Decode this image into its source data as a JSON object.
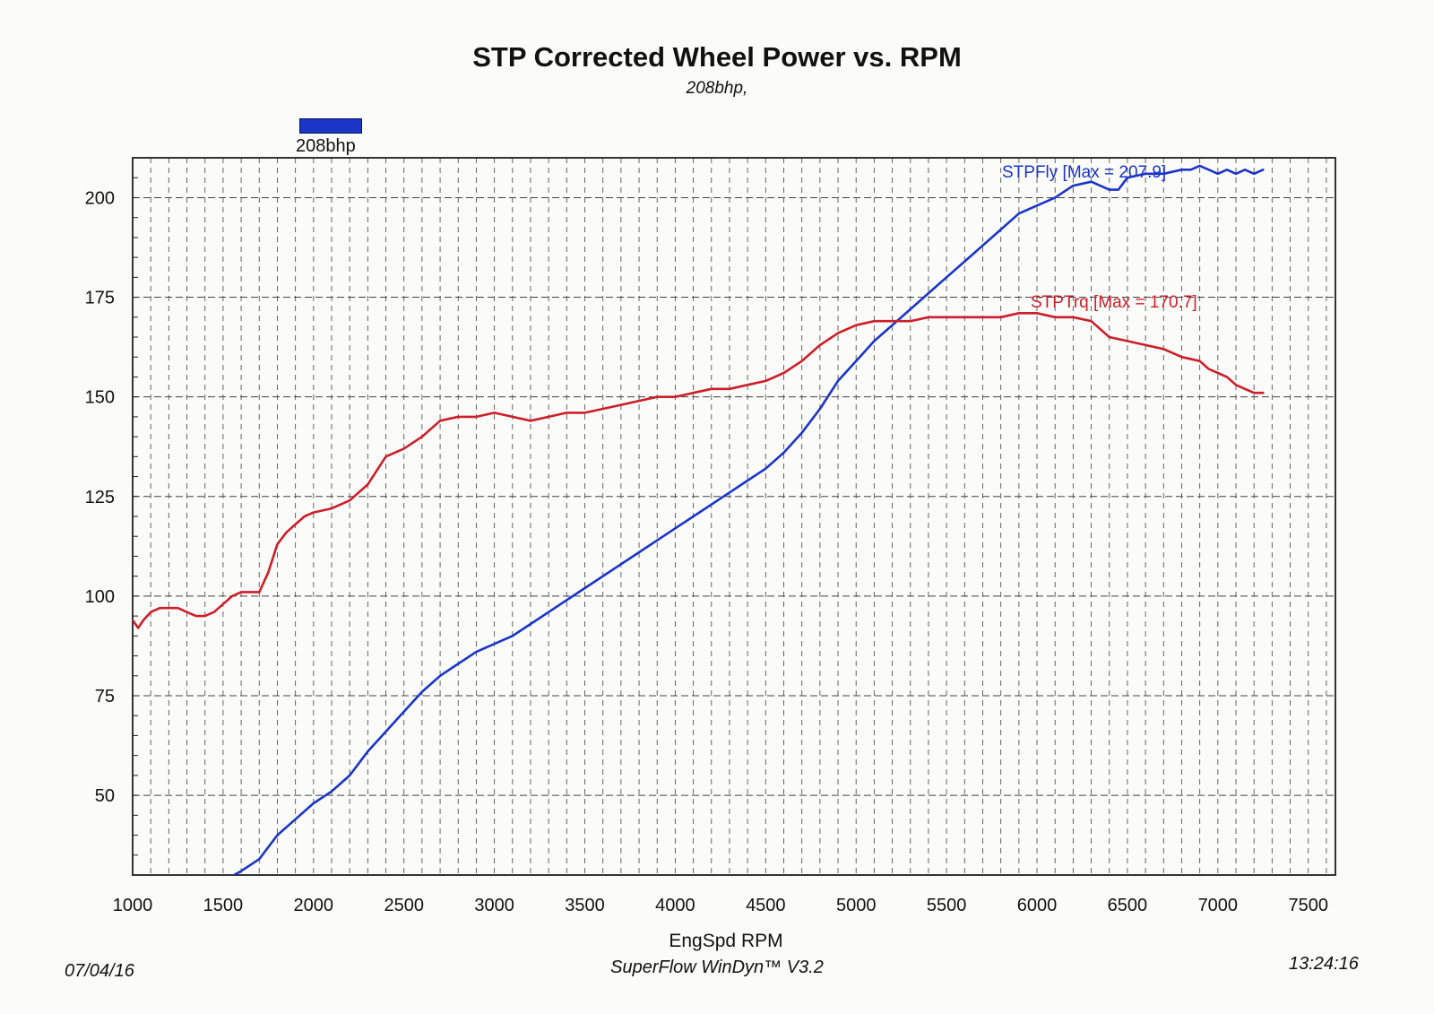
{
  "chart_data": {
    "type": "line",
    "title": "STP Corrected Wheel Power vs. RPM",
    "subtitle": "208bhp,",
    "legend": [
      {
        "label": "208bhp",
        "color": "#1a35c8"
      }
    ],
    "xlabel": "EngSpd RPM",
    "ylabel": "",
    "xlim": [
      1000,
      7650
    ],
    "ylim": [
      30,
      210
    ],
    "xticks": [
      1000,
      1500,
      2000,
      2500,
      3000,
      3500,
      4000,
      4500,
      5000,
      5500,
      6000,
      6500,
      7000,
      7500
    ],
    "yticks": [
      50,
      75,
      100,
      125,
      150,
      175,
      200
    ],
    "grid": true,
    "series": [
      {
        "name": "STPFly",
        "label": "STPFly [Max = 207.9]",
        "color": "#1a35c8",
        "x": [
          1560,
          1600,
          1700,
          1800,
          1900,
          2000,
          2100,
          2200,
          2300,
          2400,
          2500,
          2600,
          2700,
          2800,
          2900,
          3000,
          3100,
          3200,
          3300,
          3400,
          3500,
          3600,
          3700,
          3800,
          3900,
          4000,
          4100,
          4200,
          4300,
          4400,
          4500,
          4600,
          4700,
          4800,
          4900,
          5000,
          5100,
          5200,
          5300,
          5400,
          5500,
          5600,
          5700,
          5800,
          5900,
          6000,
          6100,
          6200,
          6300,
          6400,
          6450,
          6500,
          6600,
          6700,
          6800,
          6850,
          6900,
          6950,
          7000,
          7050,
          7100,
          7150,
          7200,
          7250
        ],
        "y": [
          30,
          31,
          34,
          40,
          44,
          48,
          51,
          55,
          61,
          66,
          71,
          76,
          80,
          83,
          86,
          88,
          90,
          93,
          96,
          99,
          102,
          105,
          108,
          111,
          114,
          117,
          120,
          123,
          126,
          129,
          132,
          136,
          141,
          147,
          154,
          159,
          164,
          168,
          172,
          176,
          180,
          184,
          188,
          192,
          196,
          198,
          200,
          203,
          204,
          202,
          202,
          205,
          206,
          206,
          207,
          207,
          208,
          207,
          206,
          207,
          206,
          207,
          206,
          207
        ]
      },
      {
        "name": "STPTrq",
        "label": "STPTrq [Max = 170.7]",
        "color": "#cc1f2a",
        "x": [
          1000,
          1030,
          1060,
          1100,
          1150,
          1200,
          1250,
          1300,
          1350,
          1400,
          1450,
          1500,
          1550,
          1600,
          1650,
          1700,
          1750,
          1800,
          1850,
          1900,
          1950,
          2000,
          2100,
          2200,
          2300,
          2400,
          2500,
          2600,
          2700,
          2800,
          2900,
          3000,
          3100,
          3200,
          3300,
          3400,
          3500,
          3600,
          3700,
          3800,
          3900,
          4000,
          4100,
          4200,
          4300,
          4400,
          4500,
          4600,
          4700,
          4800,
          4900,
          5000,
          5100,
          5200,
          5300,
          5400,
          5500,
          5600,
          5700,
          5800,
          5900,
          6000,
          6100,
          6200,
          6300,
          6400,
          6500,
          6600,
          6700,
          6800,
          6900,
          6950,
          7000,
          7050,
          7100,
          7150,
          7200,
          7250
        ],
        "y": [
          94,
          92,
          94,
          96,
          97,
          97,
          97,
          96,
          95,
          95,
          96,
          98,
          100,
          101,
          101,
          101,
          106,
          113,
          116,
          118,
          120,
          121,
          122,
          124,
          128,
          135,
          137,
          140,
          144,
          145,
          145,
          146,
          145,
          144,
          145,
          146,
          146,
          147,
          148,
          149,
          150,
          150,
          151,
          152,
          152,
          153,
          154,
          156,
          159,
          163,
          166,
          168,
          169,
          169,
          169,
          170,
          170,
          170,
          170,
          170,
          171,
          171,
          170,
          170,
          169,
          165,
          164,
          163,
          162,
          160,
          159,
          157,
          156,
          155,
          153,
          152,
          151,
          151
        ]
      }
    ]
  },
  "footer": {
    "date": "07/04/16",
    "software": "SuperFlow WinDyn™ V3.2",
    "time": "13:24:16"
  }
}
